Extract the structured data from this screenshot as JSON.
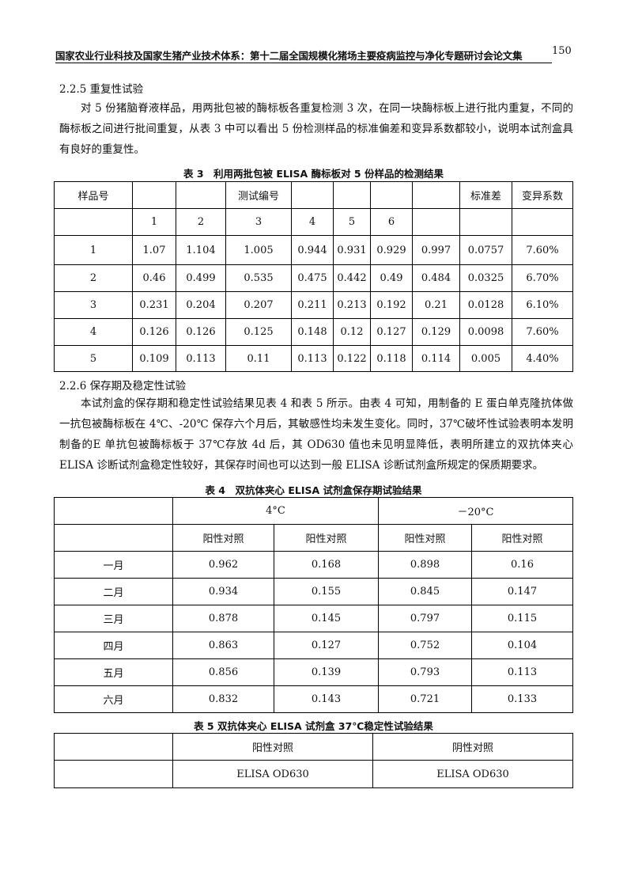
{
  "header": {
    "title": "国家农业行业科技及国家生猪产业技术体系：第十二届全国规模化猪场主要疫病监控与净化专题研讨会论文集",
    "page_number": "150"
  },
  "section_225": {
    "heading": "2.2.5 重复性试验",
    "paragraph": "对 5 份猪脑脊液样品，用两批包被的酶标板各重复检测 3 次，在同一块酶标板上进行批内重复，不同的酶标板之间进行批间重复，从表 3 中可以看出 5 份检测样品的标准偏差和变异系数都较小，说明本试剂盒具有良好的重复性。"
  },
  "table3": {
    "caption": "表 3　利用两批包被 ELISA 酶标板对 5 份样品的检测结果",
    "header1": [
      "样品号",
      "",
      "",
      "测试编号",
      "",
      "",
      "",
      "",
      "标准差",
      "变异系数"
    ],
    "header2": [
      "",
      "1",
      "2",
      "3",
      "4",
      "5",
      "6",
      "",
      "",
      ""
    ],
    "rows": [
      [
        "1",
        "1.07",
        "1.104",
        "1.005",
        "0.944",
        "0.931",
        "0.929",
        "0.997",
        "0.0757",
        "7.60%"
      ],
      [
        "2",
        "0.46",
        "0.499",
        "0.535",
        "0.475",
        "0.442",
        "0.49",
        "0.484",
        "0.0325",
        "6.70%"
      ],
      [
        "3",
        "0.231",
        "0.204",
        "0.207",
        "0.211",
        "0.213",
        "0.192",
        "0.21",
        "0.0128",
        "6.10%"
      ],
      [
        "4",
        "0.126",
        "0.126",
        "0.125",
        "0.148",
        "0.12",
        "0.127",
        "0.129",
        "0.0098",
        "7.60%"
      ],
      [
        "5",
        "0.109",
        "0.113",
        "0.11",
        "0.113",
        "0.122",
        "0.118",
        "0.114",
        "0.005",
        "4.40%"
      ]
    ]
  },
  "section_226": {
    "heading": "2.2.6 保存期及稳定性试验",
    "paragraph": "本试剂盒的保存期和稳定性试验结果见表 4 和表 5 所示。由表 4 可知，用制备的 E 蛋白单克隆抗体做一抗包被酶标板在 4℃、-20℃ 保存六个月后，其敏感性均未发生变化。同时，37℃破坏性试验表明本发明制备的E 单抗包被酶标板于 37℃存放 4d 后，其 OD630 值也未见明显降低，表明所建立的双抗体夹心 ELISA 诊断试剂盒稳定性较好，其保存时间也可以达到一般 ELISA 诊断试剂盒所规定的保质期要求。"
  },
  "table4": {
    "caption": "表 4　双抗体夹心 ELISA 试剂盒保存期试验结果",
    "group_headers": [
      "4°C",
      "－20°C"
    ],
    "sub_headers": [
      "阳性对照",
      "阳性对照",
      "阳性对照",
      "阳性对照"
    ],
    "rows": [
      [
        "一月",
        "0.962",
        "0.168",
        "0.898",
        "0.16"
      ],
      [
        "二月",
        "0.934",
        "0.155",
        "0.845",
        "0.147"
      ],
      [
        "三月",
        "0.878",
        "0.145",
        "0.797",
        "0.115"
      ],
      [
        "四月",
        "0.863",
        "0.127",
        "0.752",
        "0.104"
      ],
      [
        "五月",
        "0.856",
        "0.139",
        "0.793",
        "0.113"
      ],
      [
        "六月",
        "0.832",
        "0.143",
        "0.721",
        "0.133"
      ]
    ]
  },
  "table5": {
    "caption": "表 5 双抗体夹心 ELISA 试剂盒 37℃稳定性试验结果",
    "headers": [
      "",
      "阳性对照",
      "阴性对照"
    ],
    "row": [
      "",
      "ELISA OD630",
      "ELISA OD630"
    ]
  }
}
